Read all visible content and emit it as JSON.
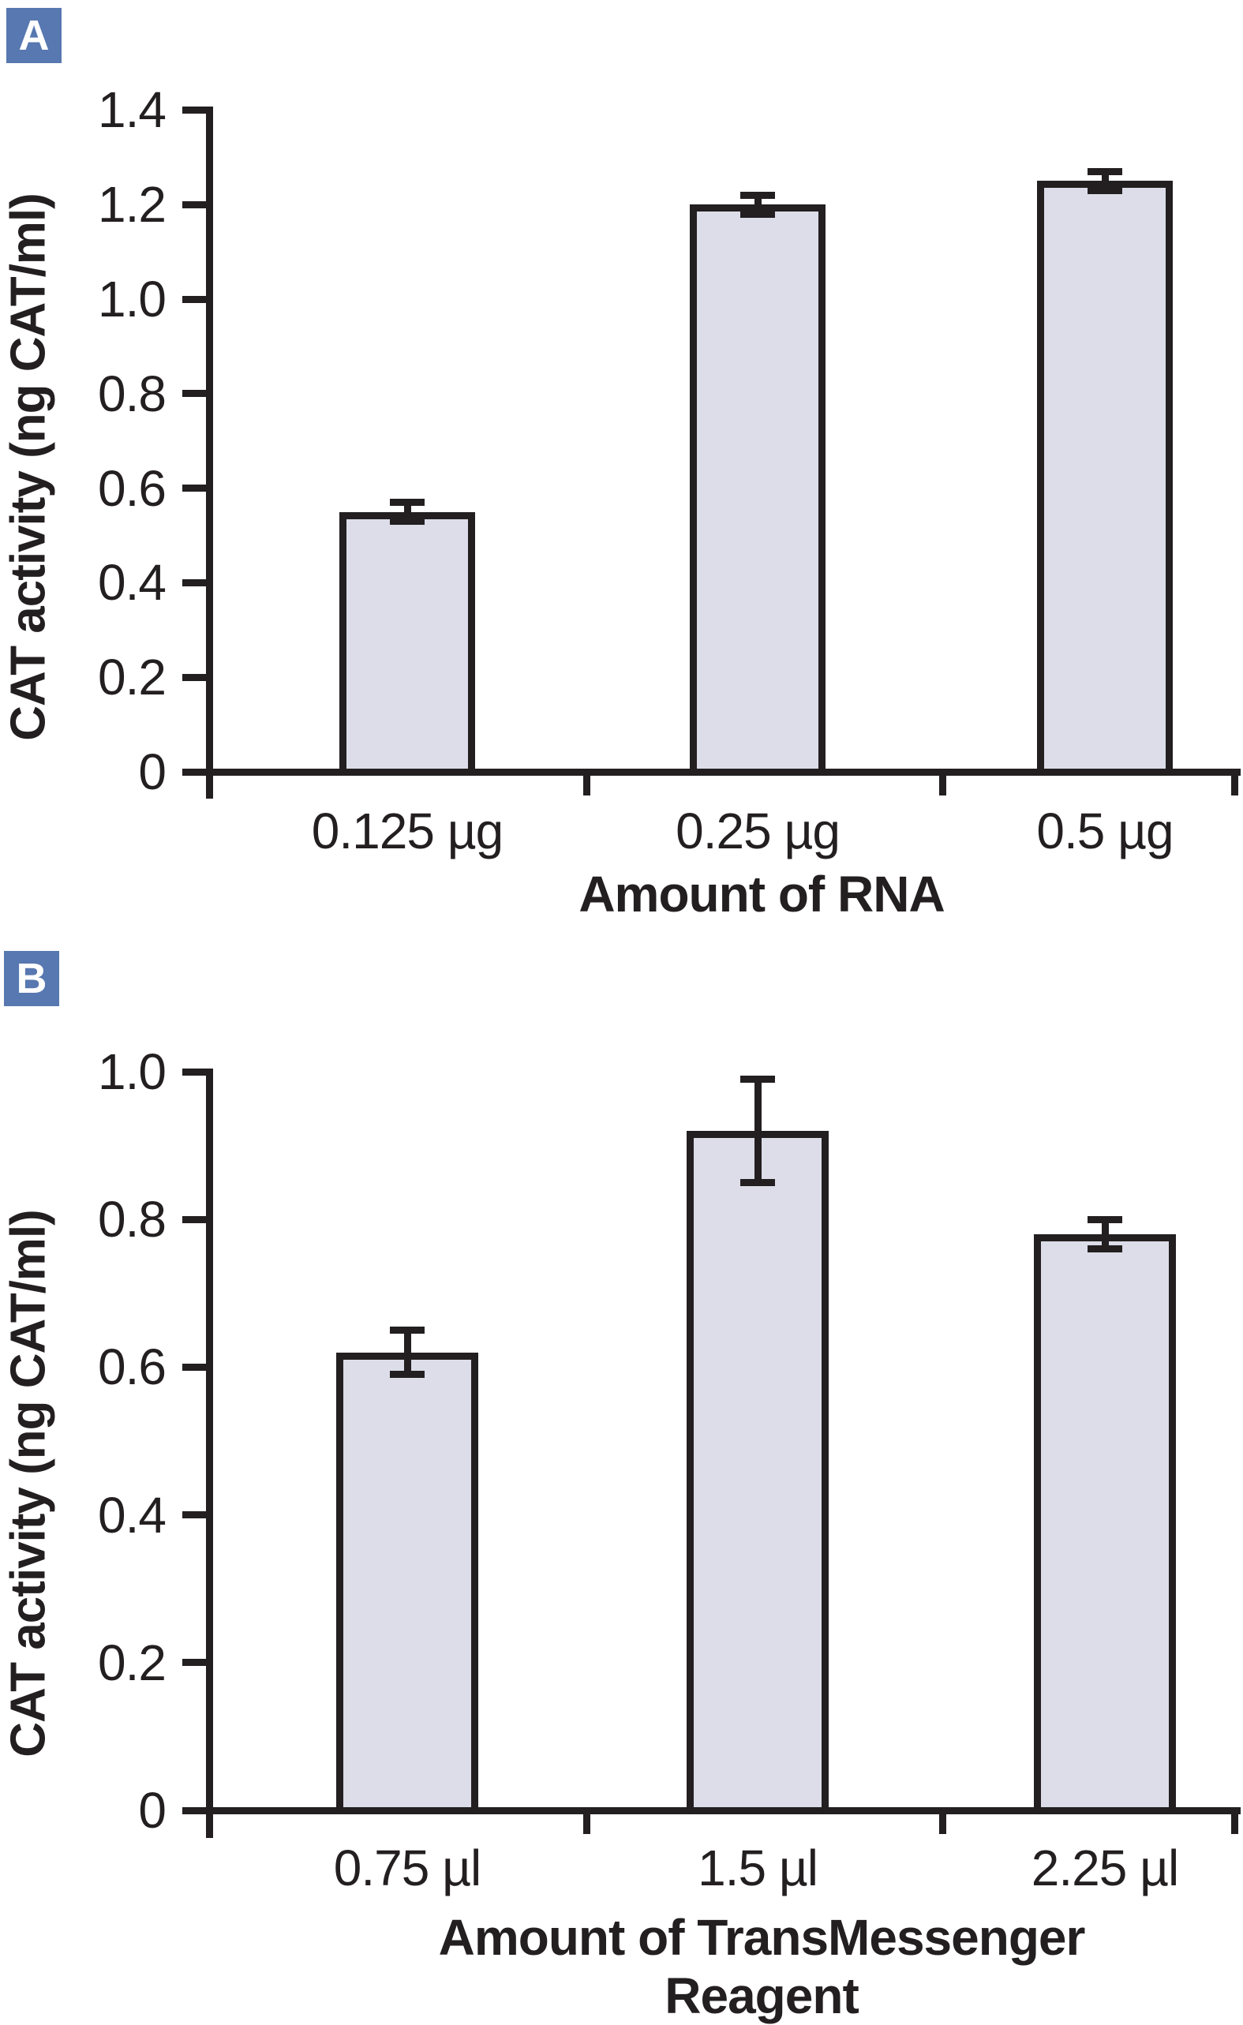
{
  "figure": {
    "background": "#ffffff",
    "line_color": "#231f20",
    "bar_fill_color": "#dcdde9",
    "badge_color": "#5778b0",
    "badge_text_color": "#ffffff"
  },
  "chart_data": [
    {
      "panel": "A",
      "type": "bar",
      "title": "",
      "xlabel": "Amount of RNA",
      "xlabel_lines": [
        "Amount of RNA"
      ],
      "ylabel": "CAT activity (ng CAT/ml)",
      "categories": [
        "0.125 µg",
        "0.25 µg",
        "0.5 µg"
      ],
      "values": [
        0.55,
        1.2,
        1.25
      ],
      "errors": [
        0.02,
        0.02,
        0.02
      ],
      "ylim": [
        0,
        1.4
      ],
      "ytick_values": [
        0,
        0.2,
        0.4,
        0.6,
        0.8,
        1.0,
        1.2,
        1.4
      ],
      "ytick_labels": [
        "0",
        "0.2",
        "0.4",
        "0.6",
        "0.8",
        "1.0",
        "1.2",
        "1.4"
      ],
      "grid": false,
      "legend": false
    },
    {
      "panel": "B",
      "type": "bar",
      "title": "",
      "xlabel": "Amount of TransMessenger Reagent",
      "xlabel_lines": [
        "Amount of TransMessenger",
        "Reagent"
      ],
      "ylabel": "CAT activity (ng CAT/ml)",
      "categories": [
        "0.75 µl",
        "1.5 µl",
        "2.25 µl"
      ],
      "values": [
        0.62,
        0.92,
        0.78
      ],
      "errors": [
        0.03,
        0.07,
        0.02
      ],
      "ylim": [
        0,
        1.0
      ],
      "ytick_values": [
        0,
        0.2,
        0.4,
        0.6,
        0.8,
        1.0
      ],
      "ytick_labels": [
        "0",
        "0.2",
        "0.4",
        "0.6",
        "0.8",
        "1.0"
      ],
      "grid": false,
      "legend": false
    }
  ]
}
